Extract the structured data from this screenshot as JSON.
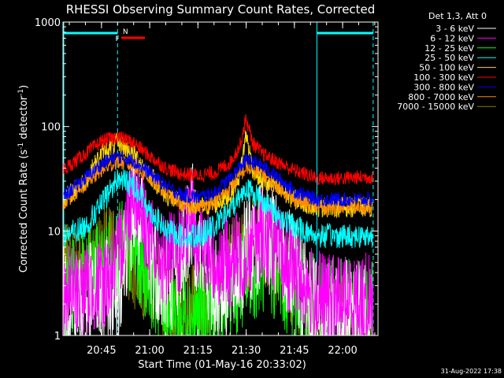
{
  "chart_data": {
    "type": "line",
    "title": "RHESSI Observing Summary Count Rates, Corrected",
    "xlabel": "Start Time (01-May-16 20:33:02)",
    "ylabel_main": "Corrected Count Rate (s",
    "ylabel_sup1": "-1",
    "ylabel_mid": " detector",
    "ylabel_sup2": "-1",
    "ylabel_end": ")",
    "yscale": "log",
    "ylim": [
      1,
      1000
    ],
    "yticks": [
      {
        "value": 1,
        "label": "1"
      },
      {
        "value": 10,
        "label": "10"
      },
      {
        "value": 100,
        "label": "100"
      },
      {
        "value": 1000,
        "label": "1000"
      }
    ],
    "xlim": [
      "20:33:02",
      "22:11:00"
    ],
    "xticks": [
      "20:45",
      "21:00",
      "21:15",
      "21:30",
      "21:45",
      "22:00"
    ],
    "legend_title": "Det 1,3, Att 0",
    "legend_position": "top-right",
    "timestamp": "31-Aug-2022 17:38",
    "flags": [
      {
        "label": "N",
        "color": "#00ffff",
        "start": "20:33:02",
        "end": "20:50:00"
      },
      {
        "label": "F",
        "color": "#ff0000",
        "start": "20:51:10",
        "end": "20:58:30"
      },
      {
        "label": "",
        "color": "#00ffff",
        "start": "21:52:00",
        "end": "22:09:30"
      }
    ],
    "boundaries": {
      "data_start": "20:33:02",
      "night_end": "20:50:00",
      "night_start": "21:52:00",
      "data_end": "22:09:30"
    },
    "series": [
      {
        "name": "3 - 6 keV",
        "color": "#ffffff",
        "times": [
          "20:33",
          "20:45",
          "20:50",
          "20:55",
          "21:00",
          "21:05",
          "21:10",
          "21:13",
          "21:16",
          "21:20",
          "21:25",
          "21:30",
          "21:35",
          "21:40",
          "21:45",
          "21:50",
          "21:55",
          "22:00",
          "22:05",
          "22:09"
        ],
        "values": [
          2,
          2.3,
          3,
          18,
          6,
          3,
          6,
          14,
          6,
          3,
          3,
          6,
          10,
          6,
          4,
          2,
          1.6,
          1.5,
          1.5,
          1.5
        ]
      },
      {
        "name": "6 - 12 keV",
        "color": "#ff00ff",
        "times": [
          "20:33",
          "20:45",
          "20:50",
          "20:55",
          "21:00",
          "21:05",
          "21:10",
          "21:13",
          "21:16",
          "21:20",
          "21:25",
          "21:30",
          "21:35",
          "21:40",
          "21:45",
          "21:50",
          "21:55",
          "22:00",
          "22:05",
          "22:09"
        ],
        "values": [
          2.5,
          3,
          5,
          30,
          8,
          5,
          7,
          15,
          7,
          5,
          5,
          6,
          10,
          6,
          4,
          2.5,
          2.2,
          2.2,
          2.2,
          2.2
        ]
      },
      {
        "name": "12 - 25 keV",
        "color": "#00ff00",
        "times": [
          "20:33",
          "20:45",
          "20:50",
          "20:55",
          "21:00",
          "21:05",
          "21:10",
          "21:15",
          "21:20",
          "21:25",
          "21:30",
          "21:35",
          "21:40",
          "21:45",
          "21:50",
          "21:55",
          "22:00",
          "22:05",
          "22:09"
        ],
        "values": [
          2.5,
          4,
          6,
          7,
          4,
          2,
          1.5,
          1.5,
          1.7,
          2.5,
          4,
          5,
          4,
          2.5,
          2,
          1.8,
          1.8,
          1.8,
          1.8
        ]
      },
      {
        "name": "25 - 50 keV",
        "color": "#00ffff",
        "times": [
          "20:33",
          "20:40",
          "20:45",
          "20:50",
          "20:55",
          "21:00",
          "21:05",
          "21:10",
          "21:15",
          "21:20",
          "21:25",
          "21:30",
          "21:35",
          "21:40",
          "21:45",
          "21:52",
          "22:00",
          "22:09"
        ],
        "values": [
          9,
          11,
          18,
          32,
          28,
          16,
          10,
          9,
          9,
          11,
          16,
          26,
          20,
          14,
          11,
          9,
          9,
          9
        ]
      },
      {
        "name": "50 - 100 keV",
        "color": "#ffd700",
        "times": [
          "20:33",
          "20:40",
          "20:45",
          "20:50",
          "20:55",
          "21:00",
          "21:05",
          "21:10",
          "21:15",
          "21:20",
          "21:25",
          "21:28",
          "21:30",
          "21:32",
          "21:35",
          "21:40",
          "21:45",
          "21:52",
          "22:00",
          "22:09"
        ],
        "values": [
          20,
          30,
          55,
          70,
          55,
          35,
          22,
          18,
          17,
          18,
          22,
          35,
          85,
          40,
          30,
          25,
          20,
          17,
          17,
          17
        ]
      },
      {
        "name": "100 - 300 keV",
        "color": "#ff0000",
        "times": [
          "20:33",
          "20:40",
          "20:45",
          "20:50",
          "20:55",
          "21:00",
          "21:05",
          "21:10",
          "21:15",
          "21:20",
          "21:25",
          "21:28",
          "21:30",
          "21:32",
          "21:35",
          "21:40",
          "21:45",
          "21:52",
          "22:00",
          "22:09"
        ],
        "values": [
          38,
          55,
          72,
          80,
          70,
          52,
          40,
          35,
          34,
          36,
          45,
          65,
          120,
          70,
          55,
          45,
          38,
          32,
          32,
          33
        ]
      },
      {
        "name": "300 - 800 keV",
        "color": "#0000ff",
        "times": [
          "20:33",
          "20:40",
          "20:45",
          "20:50",
          "20:55",
          "21:00",
          "21:05",
          "21:10",
          "21:15",
          "21:20",
          "21:25",
          "21:30",
          "21:35",
          "21:40",
          "21:45",
          "21:52",
          "22:00",
          "22:09"
        ],
        "values": [
          21,
          32,
          44,
          52,
          47,
          36,
          27,
          22,
          21,
          23,
          32,
          48,
          42,
          32,
          24,
          20,
          20,
          20
        ]
      },
      {
        "name": "800 - 7000 keV",
        "color": "#ff8c00",
        "times": [
          "20:33",
          "20:40",
          "20:45",
          "20:50",
          "20:55",
          "21:00",
          "21:05",
          "21:10",
          "21:15",
          "21:20",
          "21:25",
          "21:30",
          "21:35",
          "21:40",
          "21:45",
          "21:52",
          "22:00",
          "22:09"
        ],
        "values": [
          18,
          28,
          38,
          46,
          42,
          32,
          23,
          18,
          17,
          19,
          26,
          40,
          36,
          26,
          20,
          17,
          17,
          17
        ]
      },
      {
        "name": "7000 - 15000 keV",
        "color": "#808000",
        "times": [
          "20:33",
          "20:40",
          "20:45",
          "20:50",
          "20:55",
          "21:00",
          "21:05",
          "21:10",
          "21:15",
          "21:20",
          "21:25",
          "21:30",
          "21:35",
          "21:40",
          "21:45",
          "21:50",
          "21:55",
          "22:00",
          "22:09"
        ],
        "values": [
          4,
          5,
          6.5,
          7,
          5,
          3.5,
          2.5,
          1.8,
          1.7,
          2.5,
          4.5,
          7,
          8.5,
          5,
          3,
          2,
          1.6,
          1.5,
          1.5
        ]
      }
    ]
  }
}
